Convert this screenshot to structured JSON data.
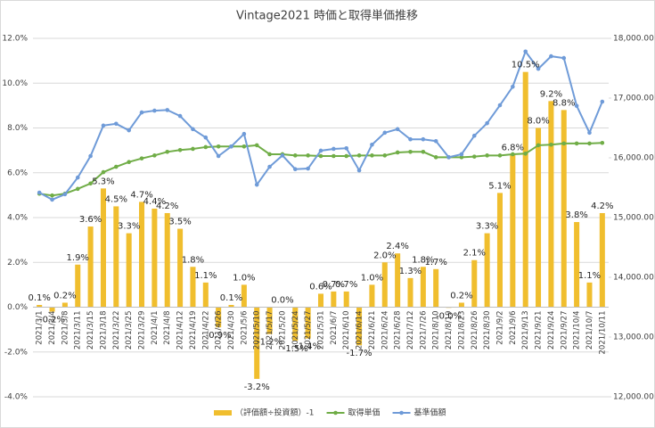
{
  "chart_data": {
    "type": "bar",
    "title": "Vintage2021 時価と取得単価推移",
    "categories": [
      "2021/3/1",
      "2021/3/4",
      "2021/3/8",
      "2021/3/11",
      "2021/3/15",
      "2021/3/18",
      "2021/3/22",
      "2021/3/25",
      "2021/3/29",
      "2021/4/1",
      "2021/4/8",
      "2021/4/12",
      "2021/4/19",
      "2021/4/22",
      "2021/4/26",
      "2021/4/30",
      "2021/5/6",
      "2021/5/10",
      "2021/5/17",
      "2021/5/20",
      "2021/5/24",
      "2021/5/27",
      "2021/5/31",
      "2021/6/7",
      "2021/6/10",
      "2021/6/14",
      "2021/6/21",
      "2021/6/24",
      "2021/6/28",
      "2021/7/12",
      "2021/7/26",
      "2021/8/10",
      "2021/8/19",
      "2021/8/23",
      "2021/8/26",
      "2021/8/30",
      "2021/9/2",
      "2021/9/6",
      "2021/9/13",
      "2021/9/21",
      "2021/9/24",
      "2021/9/27",
      "2021/10/4",
      "2021/10/7",
      "2021/10/11"
    ],
    "series": [
      {
        "name": "（評価額÷投資額）-1",
        "type": "bar",
        "color": "#f0be2e",
        "values": [
          0.1,
          -0.2,
          0.2,
          1.9,
          3.6,
          5.3,
          4.5,
          3.3,
          4.7,
          4.4,
          4.2,
          3.5,
          1.8,
          1.1,
          -0.9,
          0.1,
          1.0,
          -3.2,
          -1.2,
          0.0,
          -1.5,
          -1.4,
          0.6,
          0.7,
          0.7,
          -1.7,
          1.0,
          2.0,
          2.4,
          1.3,
          1.8,
          1.7,
          -0.03,
          0.2,
          2.1,
          3.3,
          5.1,
          6.8,
          10.5,
          8.0,
          9.2,
          8.8,
          3.8,
          1.1,
          4.2
        ],
        "value_labels": [
          "0.1%",
          "-0.2%",
          "0.2%",
          "1.9%",
          "3.6%",
          "5.3%",
          "4.5%",
          "3.3%",
          "4.7%",
          "4.4%",
          "4.2%",
          "3.5%",
          "1.8%",
          "1.1%",
          "-0.9%",
          "0.1%",
          "1.0%",
          "-3.2%",
          "-1.2%",
          "0.0%",
          "-1.5%",
          "-1.4%",
          "0.6%",
          "0.7%",
          "0.7%",
          "-1.7%",
          "1.0%",
          "2.0%",
          "2.4%",
          "1.3%",
          "1.8%",
          "1.7%",
          "-0.0%",
          "0.2%",
          "2.1%",
          "3.3%",
          "5.1%",
          "6.8%",
          "10.5%",
          "8.0%",
          "9.2%",
          "8.8%",
          "3.8%",
          "1.1%",
          "4.2%"
        ]
      },
      {
        "name": "取得単価",
        "type": "line",
        "axis": "y2",
        "color": "#70ad47",
        "values": [
          15400,
          15370,
          15400,
          15480,
          15570,
          15760,
          15850,
          15930,
          15990,
          16040,
          16100,
          16130,
          16150,
          16180,
          16190,
          16190,
          16190,
          16210,
          16060,
          16060,
          16040,
          16040,
          16030,
          16030,
          16030,
          16040,
          16040,
          16040,
          16090,
          16100,
          16100,
          16010,
          16010,
          16010,
          16020,
          16040,
          16040,
          16060,
          16070,
          16210,
          16220,
          16240,
          16240,
          16240,
          16250
        ]
      },
      {
        "name": "基準価額",
        "type": "line",
        "axis": "y2",
        "color": "#6f9bd8",
        "values": [
          15418,
          15300,
          15390,
          15670,
          16030,
          16540,
          16570,
          16460,
          16760,
          16790,
          16800,
          16700,
          16480,
          16340,
          16030,
          16190,
          16400,
          15550,
          15850,
          16040,
          15810,
          15820,
          16120,
          16150,
          16160,
          15790,
          16220,
          16420,
          16480,
          16310,
          16310,
          16280,
          16010,
          16060,
          16370,
          16580,
          16880,
          17190,
          17780,
          17490,
          17700,
          17670,
          16870,
          16420,
          16940
        ]
      }
    ],
    "ylim": [
      -4,
      12
    ],
    "yticks": [
      {
        "value": -4,
        "label": "-4.0%"
      },
      {
        "value": -2,
        "label": "-2.0%"
      },
      {
        "value": 0,
        "label": "0.0%"
      },
      {
        "value": 2,
        "label": "2.0%"
      },
      {
        "value": 4,
        "label": "4.0%"
      },
      {
        "value": 6,
        "label": "6.0%"
      },
      {
        "value": 8,
        "label": "8.0%"
      },
      {
        "value": 10,
        "label": "10.0%"
      },
      {
        "value": 12,
        "label": "12.0%"
      }
    ],
    "y2lim": [
      12000,
      18000
    ],
    "y2ticks": [
      {
        "value": 12000,
        "label": "12,000.00"
      },
      {
        "value": 13000,
        "label": "13,000.00"
      },
      {
        "value": 14000,
        "label": "14,000.00"
      },
      {
        "value": 15000,
        "label": "15,000.00"
      },
      {
        "value": 16000,
        "label": "16,000.00"
      },
      {
        "value": 17000,
        "label": "17,000.00"
      },
      {
        "value": 18000,
        "label": "18,000.00"
      }
    ],
    "grid": true,
    "legend": "bottom"
  }
}
